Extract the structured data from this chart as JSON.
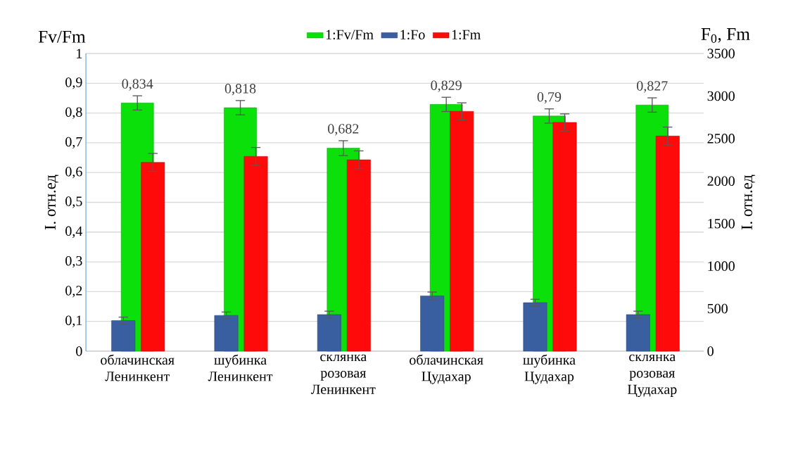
{
  "chart_data": {
    "type": "bar",
    "categories": [
      "облачинская Ленинкент",
      "шубинка Ленинкент",
      "склянка розовая Ленинкент",
      "облачинская Цудахар",
      "шубинка Цудахар",
      "склянка розовая Цудахар"
    ],
    "ylabel": "I. отн.ед",
    "y2label": "I. отн.ед",
    "annotations": [
      "Fv/Fm",
      "F$_{0}$, Fm"
    ],
    "ylim": [
      0,
      1
    ],
    "yticks": [
      0,
      {
        "value": 0.1,
        "label": "0,1"
      },
      {
        "value": 0.2,
        "label": "0,2"
      },
      {
        "value": 0.3,
        "label": "0,3"
      },
      {
        "value": 0.4,
        "label": "0,4"
      },
      {
        "value": 0.5,
        "label": "0,5"
      },
      {
        "value": 0.6,
        "label": "0,6"
      },
      {
        "value": 0.7,
        "label": "0,7"
      },
      {
        "value": 0.8,
        "label": "0,8"
      },
      {
        "value": 0.9,
        "label": "0,9"
      },
      1
    ],
    "y2lim": [
      0,
      3500
    ],
    "y2ticks": [
      0,
      500,
      1000,
      1500,
      2000,
      2500,
      3000,
      3500
    ],
    "grid": "y",
    "legend": "top",
    "series": [
      {
        "name": "1:Fv/Fm",
        "color": "#0be00b",
        "values": [
          0.834,
          0.818,
          0.682,
          0.829,
          0.79,
          0.827
        ],
        "errors": [
          0.024,
          0.024,
          0.025,
          0.024,
          0.024,
          0.024
        ],
        "value_labels": [
          "0,834",
          "0,818",
          "0,682",
          "0,829",
          "0,79",
          "0,827"
        ]
      },
      {
        "name": "1:Fo",
        "color": "#3a5fa0",
        "axis": "y2",
        "values": [
          360,
          420,
          430,
          650,
          570,
          430
        ],
        "errors": [
          40,
          40,
          40,
          45,
          40,
          40
        ]
      },
      {
        "name": "1:Fm",
        "color": "#ff0a0a",
        "axis": "y2",
        "values": [
          2220,
          2290,
          2250,
          2820,
          2690,
          2530
        ],
        "errors": [
          105,
          105,
          105,
          100,
          100,
          105
        ]
      }
    ]
  }
}
